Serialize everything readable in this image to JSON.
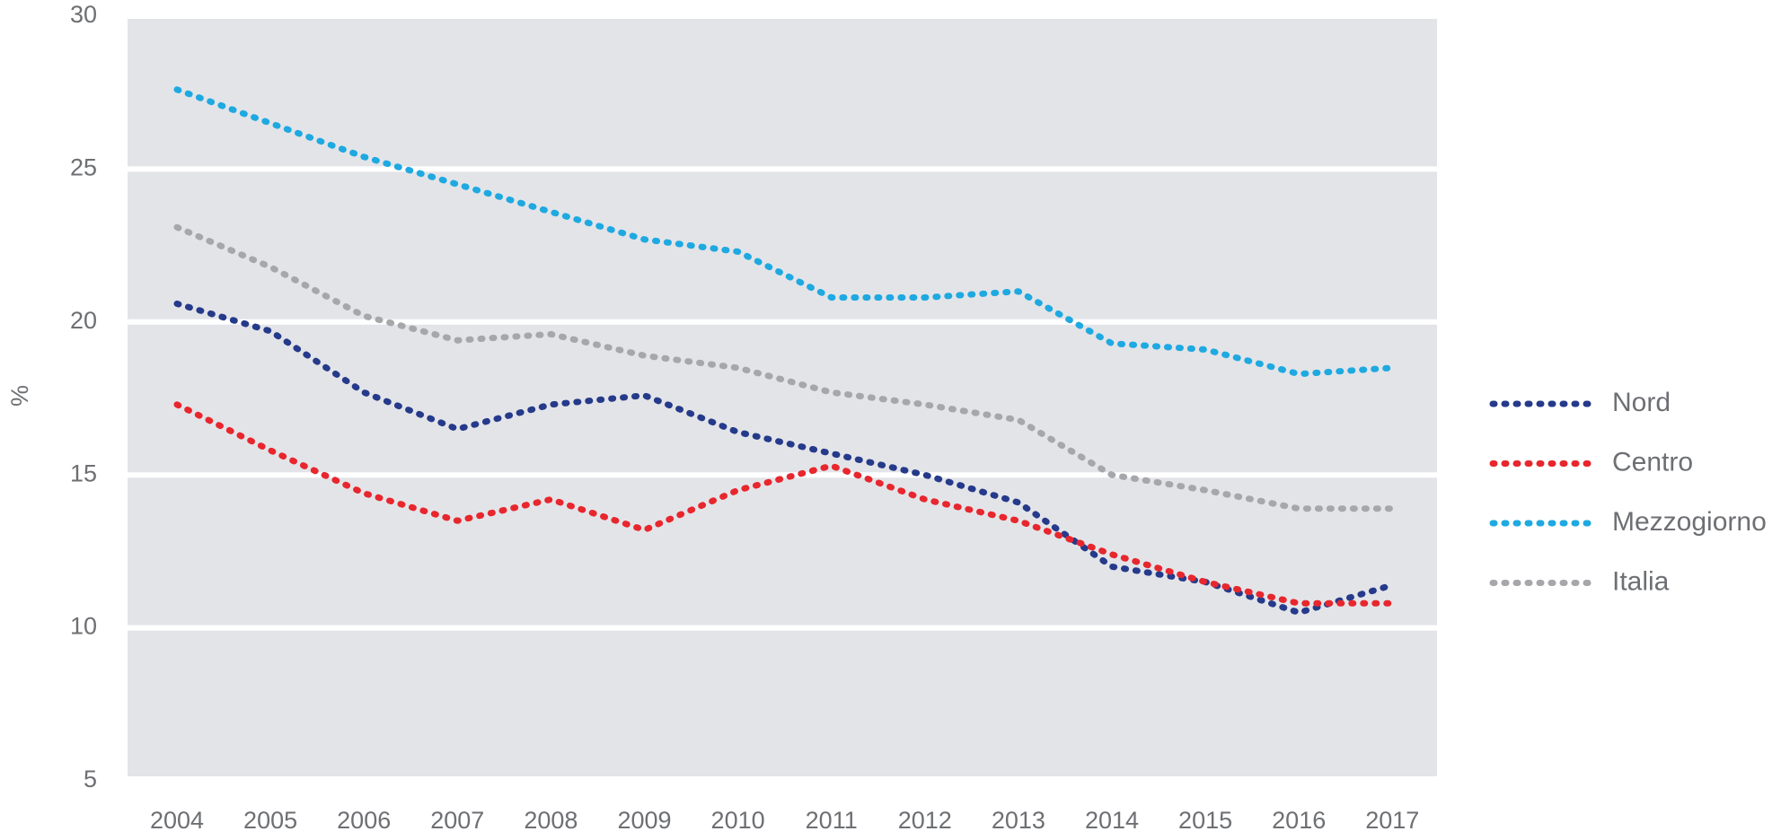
{
  "chart_data": {
    "type": "line",
    "y_label": "%",
    "categories": [
      "2004",
      "2005",
      "2006",
      "2007",
      "2008",
      "2009",
      "2010",
      "2011",
      "2012",
      "2013",
      "2014",
      "2015",
      "2016",
      "2017"
    ],
    "series": [
      {
        "name": "Nord",
        "color": "#253a8a",
        "values": [
          20.6,
          19.7,
          17.7,
          16.5,
          17.3,
          17.6,
          16.4,
          15.7,
          15.0,
          14.1,
          12.0,
          11.5,
          10.5,
          11.4
        ]
      },
      {
        "name": "Centro",
        "color": "#e8262d",
        "values": [
          17.3,
          15.8,
          14.4,
          13.5,
          14.2,
          13.2,
          14.5,
          15.3,
          14.2,
          13.5,
          12.4,
          11.5,
          10.8,
          10.8
        ]
      },
      {
        "name": "Mezzogiorno",
        "color": "#1ea9e1",
        "values": [
          27.6,
          26.5,
          25.4,
          24.5,
          23.6,
          22.7,
          22.3,
          20.8,
          20.8,
          21.0,
          19.3,
          19.1,
          18.3,
          18.5
        ]
      },
      {
        "name": "Italia",
        "color": "#a6a7aa",
        "values": [
          23.1,
          21.8,
          20.2,
          19.4,
          19.6,
          18.9,
          18.5,
          17.7,
          17.3,
          16.8,
          15.0,
          14.5,
          13.9,
          13.9
        ]
      }
    ],
    "ylim": [
      5,
      30
    ],
    "yticks": [
      5,
      10,
      15,
      20,
      25,
      30
    ],
    "grid": true,
    "legend": "right"
  }
}
